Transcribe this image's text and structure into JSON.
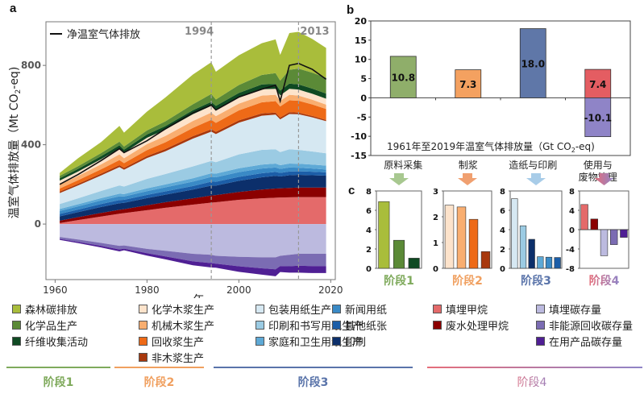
{
  "panels": {
    "a_label": "a",
    "b_label": "b",
    "c_label": "c"
  },
  "colors": {
    "forest": "#a9bd3b",
    "chem": "#5b8a37",
    "fiber": "#0f4a23",
    "chem_pulp": "#fde3cb",
    "mech_pulp": "#f9ae70",
    "recycled_pulp": "#ee6a17",
    "nonwood_pulp": "#a8380d",
    "packaging": "#d6e8f2",
    "printing_writing": "#9bcbe3",
    "household": "#5ea9d6",
    "newsprint": "#3a8ac6",
    "other_paper": "#1c5ea8",
    "printing": "#0c2f6b",
    "landfill_ch4": "#e46a6a",
    "wastewater_ch4": "#8b0000",
    "landfill_storage": "#bcbadf",
    "nonenergy_storage": "#7b6cb3",
    "inuse_storage": "#4f1f94",
    "stage1": "#7faa5c",
    "stage2": "#f0a060",
    "stage3": "#5a74aa",
    "stage4a": "#e66e7a",
    "stage4b": "#8f84c7"
  },
  "chart_data": [
    {
      "id": "a",
      "type": "area",
      "title": "",
      "xlabel": "年",
      "ylabel": "温室气体排放量（Mt CO2-eq)",
      "ylabel_main": "温室气体排放量",
      "ylabel_unit": "（Mt CO",
      "ylabel_sub": "2",
      "ylabel_tail": "-eq)",
      "xlim": [
        1958,
        2021
      ],
      "ylim": [
        -280,
        1020
      ],
      "xticks": [
        1960,
        1980,
        2000,
        2020
      ],
      "yticks": [
        0,
        400,
        800
      ],
      "vlines": [
        {
          "x": 1994,
          "label": "1994"
        },
        {
          "x": 2013,
          "label": "2013"
        }
      ],
      "line_legend": "净温室气体排放",
      "x": [
        1961,
        1965,
        1970,
        1974,
        1975,
        1980,
        1984,
        1990,
        1994,
        1995,
        2000,
        2005,
        2008,
        2009,
        2011,
        2013,
        2016,
        2019
      ],
      "positive_series": [
        {
          "key": "landfill_ch4",
          "name": "填埋甲烷",
          "values": [
            5,
            20,
            38,
            52,
            55,
            70,
            82,
            98,
            108,
            110,
            122,
            130,
            133,
            134,
            135,
            136,
            136,
            136
          ]
        },
        {
          "key": "wastewater_ch4",
          "name": "废水处理甲烷",
          "values": [
            12,
            15,
            18,
            20,
            20,
            25,
            28,
            32,
            36,
            36,
            40,
            44,
            46,
            46,
            47,
            48,
            48,
            48
          ]
        },
        {
          "key": "printing",
          "name": "印刷",
          "values": [
            22,
            25,
            30,
            33,
            32,
            36,
            38,
            44,
            50,
            48,
            56,
            62,
            64,
            60,
            64,
            64,
            62,
            60
          ]
        },
        {
          "key": "other_paper",
          "name": "其他纸张",
          "values": [
            12,
            13,
            15,
            16,
            15,
            16,
            17,
            18,
            20,
            19,
            20,
            20,
            20,
            18,
            19,
            18,
            18,
            17
          ]
        },
        {
          "key": "newsprint",
          "name": "新闻用纸",
          "values": [
            15,
            16,
            18,
            19,
            17,
            19,
            20,
            22,
            24,
            23,
            24,
            24,
            22,
            20,
            20,
            18,
            16,
            14
          ]
        },
        {
          "key": "household",
          "name": "家庭和卫生用纸生产",
          "values": [
            10,
            11,
            12,
            13,
            12,
            14,
            15,
            17,
            18,
            18,
            19,
            20,
            20,
            19,
            20,
            20,
            20,
            20
          ]
        },
        {
          "key": "printing_writing",
          "name": "印刷和书写用纸生产",
          "values": [
            25,
            30,
            36,
            42,
            38,
            48,
            52,
            60,
            62,
            58,
            70,
            74,
            72,
            66,
            72,
            70,
            66,
            62
          ]
        },
        {
          "key": "packaging",
          "name": "包装用纸生产",
          "values": [
            55,
            65,
            78,
            92,
            85,
            105,
            115,
            140,
            148,
            142,
            160,
            172,
            175,
            165,
            178,
            180,
            172,
            162
          ]
        },
        {
          "key": "nonwood_pulp",
          "name": "非木浆生产",
          "values": [
            8,
            8,
            9,
            10,
            9,
            10,
            11,
            12,
            12,
            11,
            12,
            12,
            10,
            9,
            9,
            8,
            7,
            6
          ]
        },
        {
          "key": "recycled_pulp",
          "name": "回收浆生产",
          "values": [
            15,
            18,
            22,
            26,
            24,
            30,
            34,
            42,
            48,
            45,
            50,
            56,
            58,
            56,
            60,
            60,
            58,
            55
          ]
        },
        {
          "key": "mech_pulp",
          "name": "机械木浆生产",
          "values": [
            20,
            22,
            25,
            28,
            25,
            30,
            32,
            35,
            36,
            34,
            34,
            34,
            32,
            28,
            28,
            26,
            24,
            22
          ]
        },
        {
          "key": "chem_pulp",
          "name": "化学木浆生产",
          "values": [
            20,
            22,
            26,
            30,
            28,
            32,
            32,
            34,
            34,
            32,
            32,
            32,
            30,
            28,
            30,
            30,
            30,
            30
          ]
        },
        {
          "key": "fiber",
          "name": "纤维收集活动",
          "values": [
            12,
            13,
            15,
            16,
            15,
            17,
            18,
            20,
            20,
            20,
            22,
            24,
            24,
            24,
            26,
            26,
            26,
            26
          ]
        },
        {
          "key": "chem",
          "name": "化学品生产",
          "values": [
            12,
            14,
            16,
            18,
            16,
            20,
            24,
            30,
            40,
            32,
            40,
            48,
            55,
            50,
            70,
            80,
            80,
            80
          ]
        },
        {
          "key": "forest",
          "name": "森林碳排放",
          "values": [
            15,
            40,
            55,
            80,
            70,
            95,
            120,
            150,
            160,
            140,
            150,
            160,
            170,
            130,
            185,
            185,
            170,
            150
          ]
        }
      ],
      "negative_series": [
        {
          "key": "landfill_storage",
          "name": "填埋碳存量",
          "values": [
            -65,
            -78,
            -95,
            -110,
            -108,
            -125,
            -135,
            -150,
            -155,
            -160,
            -165,
            -168,
            -168,
            -160,
            -155,
            -150,
            -150,
            -150
          ]
        },
        {
          "key": "nonenergy_storage",
          "name": "非能源回收碳存量",
          "values": [
            -10,
            -12,
            -15,
            -18,
            -16,
            -22,
            -28,
            -38,
            -42,
            -40,
            -48,
            -55,
            -60,
            -52,
            -58,
            -60,
            -62,
            -62
          ]
        },
        {
          "key": "inuse_storage",
          "name": "在用产品碳存量",
          "values": [
            -5,
            -6,
            -8,
            -10,
            -8,
            -12,
            -15,
            -20,
            -22,
            -20,
            -28,
            -32,
            -35,
            -30,
            -32,
            -35,
            -35,
            -35
          ]
        }
      ],
      "net_line": {
        "name": "净温室气体排放",
        "values": [
          200,
          250,
          320,
          380,
          360,
          420,
          480,
          560,
          600,
          575,
          640,
          680,
          700,
          620,
          800,
          810,
          780,
          730
        ]
      }
    },
    {
      "id": "b",
      "type": "bar",
      "title": "1961年至2019年温室气体排放量",
      "title_unit": "（Gt CO",
      "title_sub": "2",
      "title_tail": "-eq)",
      "categories": [
        "原料采集",
        "制浆",
        "造纸与印刷",
        "使用与\n废物管理"
      ],
      "category_lines": [
        [
          "原料采集"
        ],
        [
          "制浆"
        ],
        [
          "造纸与印刷"
        ],
        [
          "使用与",
          "废物管理"
        ]
      ],
      "ylim": [
        -15,
        20
      ],
      "yticks": [
        -15,
        -10,
        -5,
        0,
        5,
        10,
        15,
        20
      ],
      "series": [
        {
          "name": "positive",
          "values": [
            10.8,
            7.3,
            18.0,
            7.4
          ],
          "labels": [
            "10.8",
            "7.3",
            "18.0",
            "7.4"
          ]
        },
        {
          "name": "negative",
          "values": [
            0,
            0,
            0,
            -10.1
          ],
          "labels": [
            "",
            "",
            "",
            "-10.1"
          ]
        }
      ]
    },
    {
      "id": "c1",
      "type": "bar",
      "title": "阶段1",
      "ylim": [
        0,
        8
      ],
      "yticks": [
        0,
        2,
        4,
        6,
        8
      ],
      "categories": [
        "森林碳排放",
        "化学品生产",
        "纤维收集活动"
      ],
      "values": [
        6.9,
        2.9,
        1.05
      ],
      "colors": [
        "forest",
        "chem",
        "fiber"
      ]
    },
    {
      "id": "c2",
      "type": "bar",
      "title": "阶段2",
      "ylim": [
        0,
        3
      ],
      "yticks": [
        0,
        1,
        2,
        3
      ],
      "categories": [
        "化学木浆生产",
        "机械木浆生产",
        "回收浆生产",
        "非木浆生产"
      ],
      "values": [
        2.45,
        2.38,
        1.9,
        0.65
      ],
      "colors": [
        "chem_pulp",
        "mech_pulp",
        "recycled_pulp",
        "nonwood_pulp"
      ]
    },
    {
      "id": "c3",
      "type": "bar",
      "title": "阶段3",
      "ylim": [
        0,
        8
      ],
      "yticks": [
        0,
        2,
        4,
        6,
        8
      ],
      "categories": [
        "包装用纸生产",
        "印刷和书写用纸生产",
        "印刷",
        "家庭和卫生用纸生产",
        "新闻用纸",
        "其他纸张"
      ],
      "values": [
        7.2,
        4.4,
        3.0,
        1.2,
        1.15,
        1.12
      ],
      "colors": [
        "packaging",
        "printing_writing",
        "printing",
        "household",
        "newsprint",
        "other_paper"
      ]
    },
    {
      "id": "c4",
      "type": "bar",
      "title": "阶段4",
      "ylim": [
        -8,
        8
      ],
      "yticks": [
        -8,
        -4,
        0,
        4,
        8
      ],
      "categories": [
        "填埋甲烷",
        "废水处理甲烷",
        "填埋碳存量",
        "非能源回收碳存量",
        "在用产品碳存量"
      ],
      "values": [
        5.2,
        2.2,
        -5.4,
        -3.1,
        -1.6
      ],
      "colors": [
        "landfill_ch4",
        "wastewater_ch4",
        "landfill_storage",
        "nonenergy_storage",
        "inuse_storage"
      ]
    }
  ],
  "legend": {
    "columns": [
      [
        {
          "label": "森林碳排放",
          "color": "forest"
        },
        {
          "label": "化学品生产",
          "color": "chem"
        },
        {
          "label": "纤维收集活动",
          "color": "fiber"
        }
      ],
      [
        {
          "label": "化学木浆生产",
          "color": "chem_pulp"
        },
        {
          "label": "机械木浆生产",
          "color": "mech_pulp"
        },
        {
          "label": "回收浆生产",
          "color": "recycled_pulp"
        },
        {
          "label": "非木浆生产",
          "color": "nonwood_pulp"
        }
      ],
      [
        {
          "label": "包装用纸生产",
          "color": "packaging"
        },
        {
          "label": "印刷和书写用纸生产",
          "color": "printing_writing"
        },
        {
          "label": "家庭和卫生用纸生产",
          "color": "household"
        }
      ],
      [
        {
          "label": "新闻用纸",
          "color": "newsprint"
        },
        {
          "label": "其他纸张",
          "color": "other_paper"
        },
        {
          "label": "印刷",
          "color": "printing"
        }
      ],
      [
        {
          "label": "填埋甲烷",
          "color": "landfill_ch4"
        },
        {
          "label": "废水处理甲烷",
          "color": "wastewater_ch4"
        }
      ],
      [
        {
          "label": "填埋碳存量",
          "color": "landfill_storage"
        },
        {
          "label": "非能源回收碳存量",
          "color": "nonenergy_storage"
        },
        {
          "label": "在用产品碳存量",
          "color": "inuse_storage"
        }
      ]
    ],
    "stages": [
      "阶段1",
      "阶段2",
      "阶段3",
      "阶段4"
    ]
  }
}
